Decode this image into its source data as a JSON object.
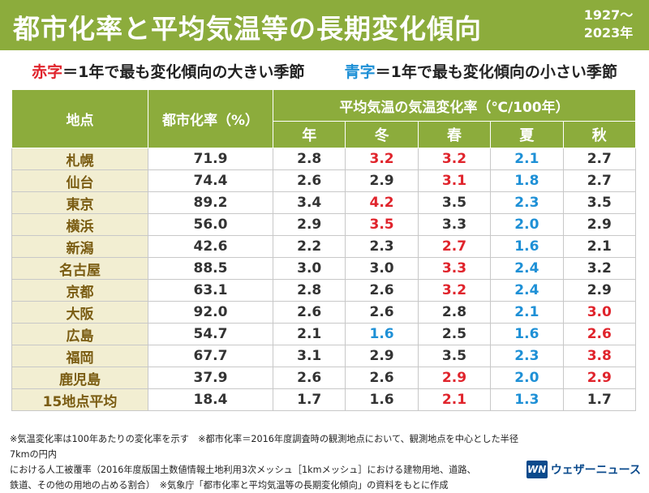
{
  "header": {
    "title": "都市化率と平均気温等の長期変化傾向",
    "period_start": "1927〜",
    "period_end": "2023年"
  },
  "legend": {
    "red_label": "赤字",
    "red_text": "＝1年で最も変化傾向の大きい季節",
    "blue_label": "青字",
    "blue_text": "＝1年で最も変化傾向の小さい季節"
  },
  "colors": {
    "header_bg": "#8cac3c",
    "high": "#e0242c",
    "low": "#1e90d6",
    "location_bg": "#f2eed2"
  },
  "chart_data": {
    "type": "table",
    "columns": {
      "location": "地点",
      "urban_rate": "都市化率（%）",
      "temp_group": "平均気温の気温変化率（℃/100年）",
      "seasons": [
        "年",
        "冬",
        "春",
        "夏",
        "秋"
      ]
    },
    "rows": [
      {
        "location": "札幌",
        "urban_rate": "71.9",
        "values": [
          "2.8",
          "3.2",
          "3.2",
          "2.1",
          "2.7"
        ],
        "marks": [
          "",
          "hi",
          "hi",
          "lo",
          ""
        ]
      },
      {
        "location": "仙台",
        "urban_rate": "74.4",
        "values": [
          "2.6",
          "2.9",
          "3.1",
          "1.8",
          "2.7"
        ],
        "marks": [
          "",
          "",
          "hi",
          "lo",
          ""
        ]
      },
      {
        "location": "東京",
        "urban_rate": "89.2",
        "values": [
          "3.4",
          "4.2",
          "3.5",
          "2.3",
          "3.5"
        ],
        "marks": [
          "",
          "hi",
          "",
          "lo",
          ""
        ]
      },
      {
        "location": "横浜",
        "urban_rate": "56.0",
        "values": [
          "2.9",
          "3.5",
          "3.3",
          "2.0",
          "2.9"
        ],
        "marks": [
          "",
          "hi",
          "",
          "lo",
          ""
        ]
      },
      {
        "location": "新潟",
        "urban_rate": "42.6",
        "values": [
          "2.2",
          "2.3",
          "2.7",
          "1.6",
          "2.1"
        ],
        "marks": [
          "",
          "",
          "hi",
          "lo",
          ""
        ]
      },
      {
        "location": "名古屋",
        "urban_rate": "88.5",
        "values": [
          "3.0",
          "3.0",
          "3.3",
          "2.4",
          "3.2"
        ],
        "marks": [
          "",
          "",
          "hi",
          "lo",
          ""
        ]
      },
      {
        "location": "京都",
        "urban_rate": "63.1",
        "values": [
          "2.8",
          "2.6",
          "3.2",
          "2.4",
          "2.9"
        ],
        "marks": [
          "",
          "",
          "hi",
          "lo",
          ""
        ]
      },
      {
        "location": "大阪",
        "urban_rate": "92.0",
        "values": [
          "2.6",
          "2.6",
          "2.8",
          "2.1",
          "3.0"
        ],
        "marks": [
          "",
          "",
          "",
          "lo",
          "hi"
        ]
      },
      {
        "location": "広島",
        "urban_rate": "54.7",
        "values": [
          "2.1",
          "1.6",
          "2.5",
          "1.6",
          "2.6"
        ],
        "marks": [
          "",
          "lo",
          "",
          "lo",
          "hi"
        ]
      },
      {
        "location": "福岡",
        "urban_rate": "67.7",
        "values": [
          "3.1",
          "2.9",
          "3.5",
          "2.3",
          "3.8"
        ],
        "marks": [
          "",
          "",
          "",
          "lo",
          "hi"
        ]
      },
      {
        "location": "鹿児島",
        "urban_rate": "37.9",
        "values": [
          "2.6",
          "2.6",
          "2.9",
          "2.0",
          "2.9"
        ],
        "marks": [
          "",
          "",
          "hi",
          "lo",
          "hi"
        ]
      },
      {
        "location": "15地点平均",
        "urban_rate": "18.4",
        "values": [
          "1.7",
          "1.6",
          "2.1",
          "1.3",
          "1.7"
        ],
        "marks": [
          "",
          "",
          "hi",
          "lo",
          ""
        ]
      }
    ]
  },
  "notes": {
    "line1": "※気温変化率は100年あたりの変化率を示す　※都市化率＝2016年度調査時の観測地点において、観測地点を中心とした半径7kmの円内",
    "line2": "における人工被覆率（2016年度版国土数値情報土地利用3次メッシュ［1kmメッシュ］における建物用地、道路、",
    "line3": "鉄道、その他の用地の占める割合）　※気象庁「都市化率と平均気温等の長期変化傾向」の資料をもとに作成"
  },
  "brand": {
    "mark": "WN",
    "name": "ウェザーニュース",
    "icon": "weathernews-logo-icon"
  }
}
